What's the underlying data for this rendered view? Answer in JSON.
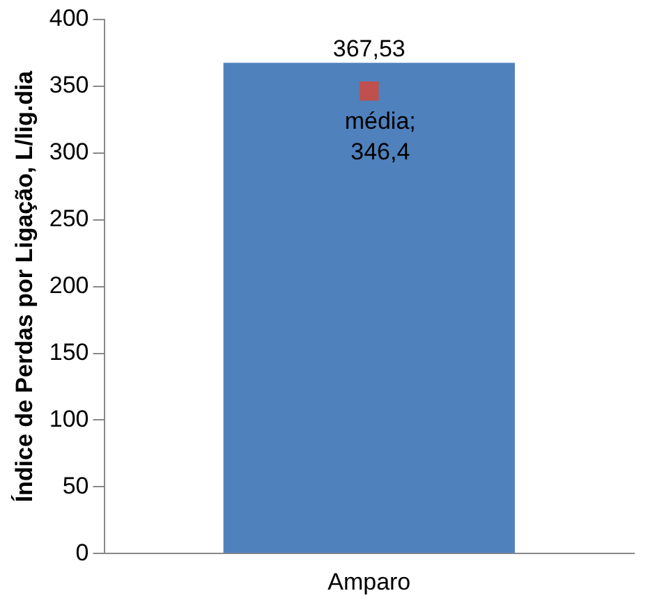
{
  "chart_data": {
    "type": "bar",
    "ylabel": "Índice de Perdas por Ligação, L/lig.dia",
    "categories": [
      "Amparo"
    ],
    "series": [
      {
        "color": "#4f81bd",
        "values": [
          367.53
        ],
        "value_labels": [
          "367,53"
        ]
      },
      {
        "type": "scatter",
        "color": "#c0504d",
        "values": [
          346.4
        ]
      }
    ],
    "annotations": [
      {
        "text": "média; 346,4",
        "x": "Amparo",
        "y": 346.4
      }
    ],
    "ylim": [
      0,
      400
    ],
    "yticks": [
      0,
      50,
      100,
      150,
      200,
      250,
      300,
      350,
      400
    ],
    "grid": false,
    "legend": false,
    "marker": "square"
  }
}
